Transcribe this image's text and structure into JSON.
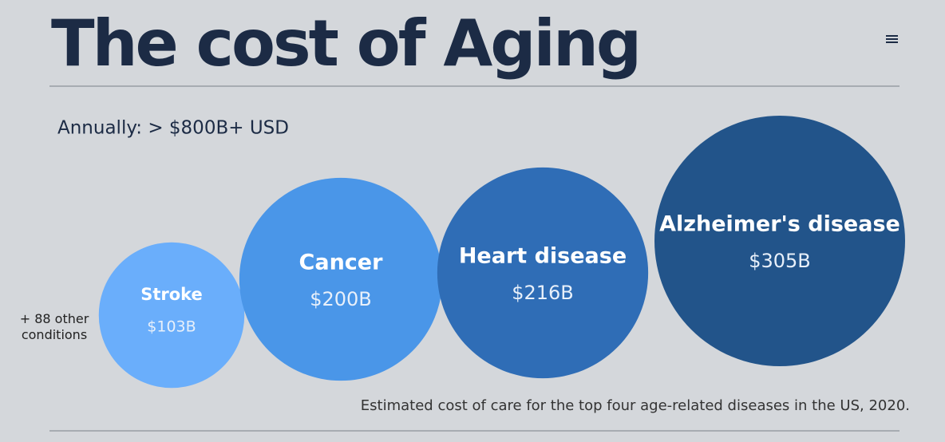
{
  "chart_data": {
    "type": "bubble",
    "title": "The cost of Aging",
    "subtitle": "Annually: > $800B+ USD",
    "note": "+ 88 other conditions",
    "caption": "Estimated cost of care for the top four age-related diseases in the US, 2020.",
    "categories": [
      "Stroke",
      "Cancer",
      "Heart disease",
      "Alzheimer's disease"
    ],
    "values": [
      103,
      200,
      216,
      305
    ],
    "value_labels": [
      "$103B",
      "$200B",
      "$216B",
      "$305B"
    ],
    "colors": [
      "#6aaefb",
      "#4a96e8",
      "#2f6db6",
      "#22548a"
    ]
  }
}
